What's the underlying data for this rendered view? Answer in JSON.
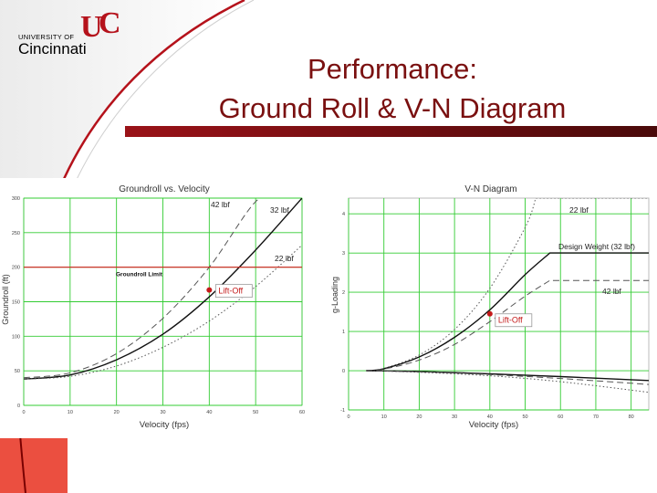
{
  "slide": {
    "title_line1": "Performance:",
    "title_line2": "Ground Roll & V-N Diagram",
    "logo_small": "UNIVERSITY OF",
    "logo_big": "Cincinnati",
    "accent_color": "#b5121b",
    "title_color": "#7a1010"
  },
  "chart_data": [
    {
      "type": "line",
      "title": "Groundroll vs. Velocity",
      "xlabel": "Velocity (fps)",
      "ylabel": "Groundroll (ft)",
      "xlim": [
        0,
        60
      ],
      "ylim": [
        0,
        300
      ],
      "xticks": [
        0,
        10,
        20,
        30,
        40,
        50,
        60
      ],
      "yticks": [
        0,
        50,
        100,
        150,
        200,
        250,
        300
      ],
      "grid": true,
      "series": [
        {
          "name": "42 lbf",
          "style": "dashed",
          "x": [
            0,
            10,
            20,
            30,
            40,
            50,
            55
          ],
          "y": [
            40,
            47,
            75,
            126,
            200,
            295,
            300
          ]
        },
        {
          "name": "32 lbf",
          "style": "solid",
          "x": [
            0,
            10,
            20,
            30,
            40,
            50,
            60
          ],
          "y": [
            38,
            44,
            66,
            103,
            157,
            225,
            300
          ]
        },
        {
          "name": "22 lbf",
          "style": "dotted",
          "x": [
            0,
            10,
            20,
            30,
            40,
            50,
            60
          ],
          "y": [
            38,
            42,
            57,
            84,
            122,
            172,
            232
          ]
        }
      ],
      "reference_line": {
        "label": "Groundroll Limit",
        "y": 200
      },
      "marker": {
        "label": "Lift-Off",
        "x": 40,
        "y": 167
      }
    },
    {
      "type": "line",
      "title": "V-N Diagram",
      "xlabel": "Velocity (fps)",
      "ylabel": "g-Loading",
      "xlim": [
        0,
        85
      ],
      "ylim": [
        -1,
        4.4
      ],
      "xticks": [
        0,
        10,
        20,
        30,
        40,
        50,
        60,
        70,
        80
      ],
      "yticks": [
        -1,
        0,
        1,
        2,
        3,
        4
      ],
      "grid": true,
      "series": [
        {
          "name": "22 lbf",
          "style": "dotted",
          "x": [
            5,
            10,
            20,
            30,
            40,
            50,
            53,
            85
          ],
          "y": [
            0,
            0.06,
            0.4,
            1.05,
            2.1,
            3.65,
            4.4,
            4.4
          ]
        },
        {
          "name": "Design Weight (32 lbf)",
          "style": "solid",
          "x": [
            5,
            10,
            20,
            30,
            40,
            50,
            57,
            85
          ],
          "y": [
            0,
            0.05,
            0.35,
            0.85,
            1.55,
            2.45,
            3.0,
            3.0
          ]
        },
        {
          "name": "42 lbf",
          "style": "dashed",
          "x": [
            5,
            10,
            20,
            30,
            40,
            50,
            57,
            85
          ],
          "y": [
            0,
            0.04,
            0.27,
            0.67,
            1.25,
            1.9,
            2.3,
            2.3
          ]
        },
        {
          "name": "",
          "style": "solid",
          "x": [
            5,
            20,
            40,
            60,
            85
          ],
          "y": [
            0,
            -0.02,
            -0.08,
            -0.15,
            -0.25
          ]
        },
        {
          "name": "",
          "style": "dashed",
          "x": [
            5,
            20,
            40,
            60,
            85
          ],
          "y": [
            0,
            -0.03,
            -0.1,
            -0.2,
            -0.35
          ]
        },
        {
          "name": "",
          "style": "dotted",
          "x": [
            5,
            20,
            40,
            60,
            85
          ],
          "y": [
            0,
            -0.04,
            -0.13,
            -0.28,
            -0.55
          ]
        }
      ],
      "marker": {
        "label": "Lift-Off",
        "x": 40,
        "y": 1.45
      }
    }
  ]
}
